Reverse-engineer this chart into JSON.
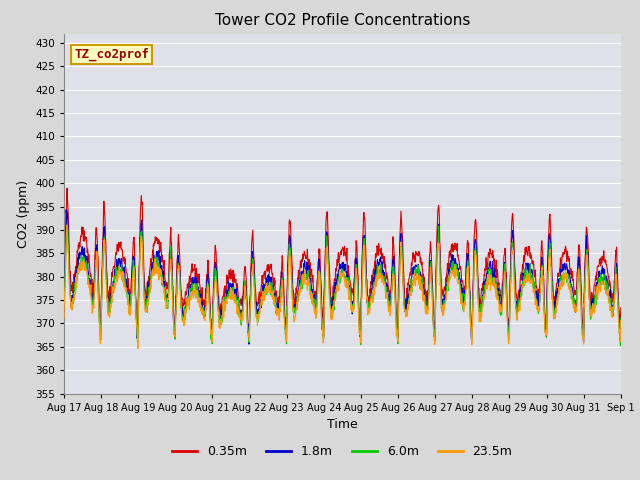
{
  "title": "Tower CO2 Profile Concentrations",
  "xlabel": "Time",
  "ylabel": "CO2 (ppm)",
  "ylim": [
    355,
    432
  ],
  "yticks": [
    355,
    360,
    365,
    370,
    375,
    380,
    385,
    390,
    395,
    400,
    405,
    410,
    415,
    420,
    425,
    430
  ],
  "legend_label": "TZ_co2prof",
  "legend_box_facecolor": "#ffffc0",
  "legend_box_edgecolor": "#cc9900",
  "legend_text_color": "#990000",
  "series_labels": [
    "0.35m",
    "1.8m",
    "6.0m",
    "23.5m"
  ],
  "series_colors": [
    "#dd0000",
    "#0000cc",
    "#00cc00",
    "#ff9900"
  ],
  "line_width": 0.8,
  "fig_facecolor": "#d8d8d8",
  "plot_facecolor": "#e0e0e8",
  "grid_color": "#ffffff",
  "tick_labels": [
    "Aug 17",
    "Aug 18",
    "Aug 19",
    "Aug 20",
    "Aug 21",
    "Aug 22",
    "Aug 23",
    "Aug 24",
    "Aug 25",
    "Aug 26",
    "Aug 27",
    "Aug 28",
    "Aug 29",
    "Aug 30",
    "Aug 31",
    "Sep 1"
  ]
}
